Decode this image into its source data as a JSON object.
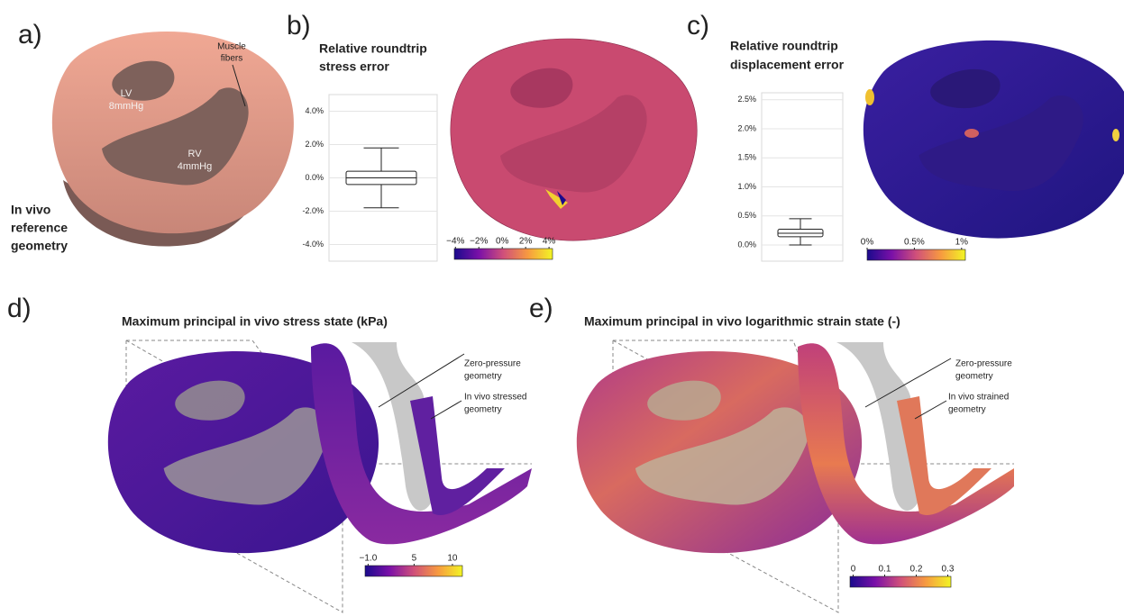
{
  "labels": [
    "a)",
    "b)",
    "c)",
    "d)",
    "e)"
  ],
  "panel_a": {
    "fibers": [
      "Muscle",
      "fibers"
    ],
    "lv": [
      "LV",
      "8mmHg"
    ],
    "rv": [
      "RV",
      "4mmHg"
    ],
    "caption": [
      "In vivo",
      "reference",
      "geometry"
    ]
  },
  "chart_data": [
    {
      "type": "box",
      "title": [
        "Relative roundtrip",
        "stress error"
      ],
      "stats": {
        "min": -1.8,
        "q1": -0.4,
        "median": 0.0,
        "q3": 0.4,
        "max": 1.8
      },
      "ylim": [
        -5,
        5
      ],
      "yticks": [
        {
          "value": -4,
          "label": "-4.0%"
        },
        {
          "value": -2,
          "label": "-2.0%"
        },
        {
          "value": 0,
          "label": "0.0%"
        },
        {
          "value": 2,
          "label": "2.0%"
        },
        {
          "value": 4,
          "label": "4.0%"
        }
      ],
      "grid": true
    },
    {
      "type": "box",
      "title": [
        "Relative roundtrip",
        "displacement error"
      ],
      "stats": {
        "min": 0.0,
        "q1": 0.14,
        "median": 0.2,
        "q3": 0.27,
        "max": 0.45
      },
      "ylim": [
        -0.28,
        2.62
      ],
      "yticks": [
        {
          "value": 0,
          "label": "0.0%"
        },
        {
          "value": 0.5,
          "label": "0.5%"
        },
        {
          "value": 1,
          "label": "1.0%"
        },
        {
          "value": 1.5,
          "label": "1.5%"
        },
        {
          "value": 2,
          "label": "2.0%"
        },
        {
          "value": 2.5,
          "label": "2.5%"
        }
      ],
      "grid": true
    }
  ],
  "colorbars": [
    {
      "range": [
        -4.1,
        4.3
      ],
      "ticks": [
        {
          "value": -4,
          "label": "−4%"
        },
        {
          "value": -2,
          "label": "−2%"
        },
        {
          "value": 0,
          "label": "0%"
        },
        {
          "value": 2,
          "label": "2%"
        },
        {
          "value": 4,
          "label": "4%"
        }
      ],
      "colors": [
        "#1a0a8c",
        "#7a10a8",
        "#d0507a",
        "#f79a40",
        "#f2f525"
      ]
    },
    {
      "range": [
        0,
        1.04
      ],
      "ticks": [
        {
          "value": 0,
          "label": "0%"
        },
        {
          "value": 0.5,
          "label": "0.5%"
        },
        {
          "value": 1,
          "label": "1%"
        }
      ],
      "colors": [
        "#1a0a8c",
        "#7a10a8",
        "#d0507a",
        "#f79a40",
        "#f2f525"
      ]
    },
    {
      "range": [
        -1.4,
        11.3
      ],
      "ticks": [
        {
          "value": -1,
          "label": "−1.0"
        },
        {
          "value": 5,
          "label": "5"
        },
        {
          "value": 10,
          "label": "10"
        }
      ],
      "colors": [
        "#1a0a8c",
        "#7a10a8",
        "#d0507a",
        "#f79a40",
        "#f2f525"
      ]
    },
    {
      "range": [
        -0.01,
        0.31
      ],
      "ticks": [
        {
          "value": 0,
          "label": "0"
        },
        {
          "value": 0.1,
          "label": "0.1"
        },
        {
          "value": 0.2,
          "label": "0.2"
        },
        {
          "value": 0.3,
          "label": "0.3"
        }
      ],
      "colors": [
        "#1a0a8c",
        "#7a10a8",
        "#d0507a",
        "#f79a40",
        "#f2f525"
      ]
    }
  ],
  "panel_d": {
    "title": "Maximum principal in vivo stress state (kPa)",
    "zero": [
      "Zero-pressure",
      "geometry"
    ],
    "invivo": [
      "In vivo stressed",
      "geometry"
    ]
  },
  "panel_e": {
    "title": "Maximum principal in vivo logarithmic strain state (-)",
    "zero": [
      "Zero-pressure",
      "geometry"
    ],
    "invivo": [
      "In vivo strained",
      "geometry"
    ]
  }
}
